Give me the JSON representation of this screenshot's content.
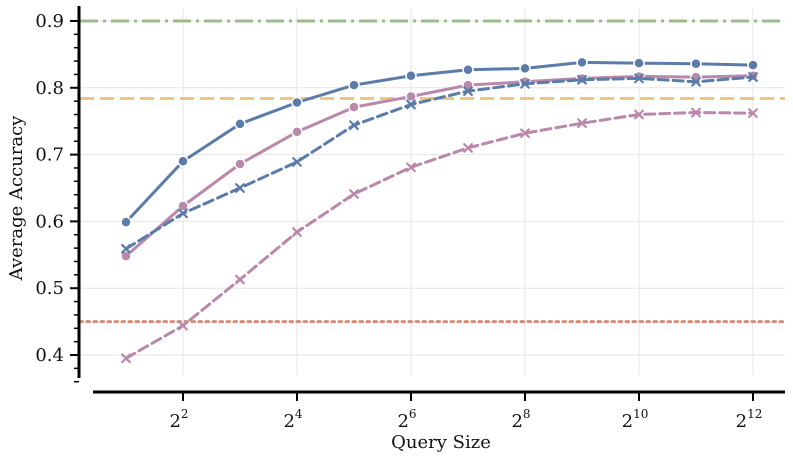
{
  "chart_data": {
    "type": "line",
    "xlabel": "Query Size",
    "ylabel": "Average Accuracy",
    "x_scale": "log2",
    "x_ticks": [
      2,
      4,
      6,
      8,
      10,
      12
    ],
    "x_tick_labels": [
      "2",
      "2",
      "2",
      "2",
      "2",
      "2"
    ],
    "x_tick_exponents": [
      "2",
      "4",
      "6",
      "8",
      "10",
      "12"
    ],
    "y_ticks": [
      0.4,
      0.5,
      0.6,
      0.7,
      0.8,
      0.9
    ],
    "y_tick_labels": [
      "0.4",
      "0.5",
      "0.6",
      "0.7",
      "0.8",
      "0.9"
    ],
    "xlim_log2": [
      0.2,
      13.0
    ],
    "ylim": [
      0.35,
      0.92
    ],
    "grid": true,
    "x": [
      2,
      4,
      8,
      16,
      32,
      64,
      128,
      256,
      512,
      1024,
      2048,
      4096
    ],
    "series": [
      {
        "style": "solid",
        "marker": "circle",
        "color": "#5b7ba8",
        "values": [
          0.599,
          0.69,
          0.746,
          0.778,
          0.804,
          0.818,
          0.827,
          0.829,
          0.838,
          0.837,
          0.836,
          0.834
        ]
      },
      {
        "style": "solid",
        "marker": "circle",
        "color": "#b988aa",
        "values": [
          0.548,
          0.623,
          0.686,
          0.734,
          0.771,
          0.787,
          0.804,
          0.809,
          0.814,
          0.817,
          0.816,
          0.818
        ]
      },
      {
        "style": "dashed",
        "marker": "x",
        "color": "#5b7ba8",
        "values": [
          0.559,
          0.612,
          0.65,
          0.689,
          0.744,
          0.775,
          0.795,
          0.806,
          0.812,
          0.814,
          0.809,
          0.816
        ]
      },
      {
        "style": "dashed",
        "marker": "x",
        "color": "#b988aa",
        "values": [
          0.395,
          0.444,
          0.513,
          0.584,
          0.641,
          0.681,
          0.71,
          0.732,
          0.747,
          0.76,
          0.763,
          0.762
        ]
      }
    ],
    "reference_lines": [
      {
        "y": 0.9,
        "style": "dashdot",
        "color": "#9dbb8c"
      },
      {
        "y": 0.784,
        "style": "dashed",
        "color": "#ecc87e"
      },
      {
        "y": 0.45,
        "style": "dotted",
        "color": "#d88c74"
      }
    ]
  }
}
